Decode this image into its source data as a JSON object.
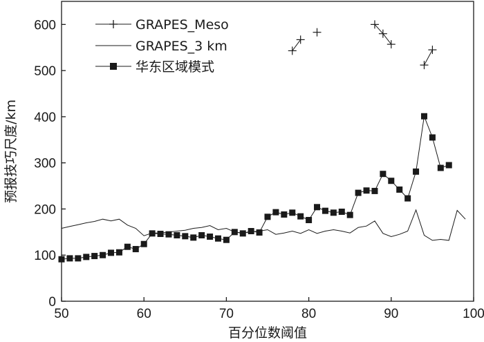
{
  "chart_data": {
    "type": "line",
    "title": "",
    "xlabel": "百分位数阈值",
    "ylabel": "预报技巧尺度/km",
    "xlim": [
      50,
      100
    ],
    "ylim": [
      0,
      650
    ],
    "x_ticks": [
      "50",
      "60",
      "70",
      "80",
      "90",
      "100"
    ],
    "y_ticks": [
      "0",
      "100",
      "200",
      "300",
      "400",
      "500",
      "600"
    ],
    "grid": false,
    "legend_position": "top-left",
    "series": [
      {
        "name": "GRAPES_Meso",
        "marker": "plus",
        "color": "#1a1a1a",
        "points": [
          [
            78,
            543
          ],
          [
            79,
            567
          ],
          [
            81,
            583
          ],
          [
            88,
            600
          ],
          [
            89,
            580
          ],
          [
            90,
            557
          ],
          [
            94,
            512
          ],
          [
            95,
            545
          ]
        ],
        "break_after_x": [
          79,
          81,
          90
        ]
      },
      {
        "name": "GRAPES_3 km",
        "marker": "none",
        "color": "#1a1a1a",
        "points": [
          [
            50,
            158
          ],
          [
            51,
            162
          ],
          [
            52,
            166
          ],
          [
            53,
            170
          ],
          [
            54,
            173
          ],
          [
            55,
            178
          ],
          [
            56,
            174
          ],
          [
            57,
            178
          ],
          [
            58,
            165
          ],
          [
            59,
            158
          ],
          [
            60,
            142
          ],
          [
            61,
            148
          ],
          [
            62,
            148
          ],
          [
            63,
            150
          ],
          [
            64,
            152
          ],
          [
            65,
            154
          ],
          [
            66,
            158
          ],
          [
            67,
            160
          ],
          [
            68,
            164
          ],
          [
            69,
            155
          ],
          [
            70,
            158
          ],
          [
            71,
            150
          ],
          [
            72,
            148
          ],
          [
            73,
            150
          ],
          [
            74,
            152
          ],
          [
            75,
            155
          ],
          [
            76,
            145
          ],
          [
            77,
            148
          ],
          [
            78,
            152
          ],
          [
            79,
            147
          ],
          [
            80,
            155
          ],
          [
            81,
            147
          ],
          [
            82,
            152
          ],
          [
            83,
            155
          ],
          [
            84,
            152
          ],
          [
            85,
            148
          ],
          [
            86,
            160
          ],
          [
            87,
            163
          ],
          [
            88,
            174
          ],
          [
            89,
            147
          ],
          [
            90,
            140
          ],
          [
            91,
            145
          ],
          [
            92,
            152
          ],
          [
            93,
            198
          ],
          [
            94,
            143
          ],
          [
            95,
            132
          ],
          [
            96,
            134
          ],
          [
            97,
            132
          ],
          [
            98,
            197
          ],
          [
            99,
            178
          ]
        ]
      },
      {
        "name": "华东区域模式",
        "marker": "square",
        "color": "#1a1a1a",
        "points": [
          [
            50,
            91
          ],
          [
            51,
            93
          ],
          [
            52,
            93
          ],
          [
            53,
            96
          ],
          [
            54,
            98
          ],
          [
            55,
            100
          ],
          [
            56,
            105
          ],
          [
            57,
            106
          ],
          [
            58,
            118
          ],
          [
            59,
            113
          ],
          [
            60,
            124
          ],
          [
            61,
            147
          ],
          [
            62,
            146
          ],
          [
            63,
            145
          ],
          [
            64,
            143
          ],
          [
            65,
            141
          ],
          [
            66,
            138
          ],
          [
            67,
            143
          ],
          [
            68,
            140
          ],
          [
            69,
            136
          ],
          [
            70,
            133
          ],
          [
            71,
            150
          ],
          [
            72,
            147
          ],
          [
            73,
            152
          ],
          [
            74,
            149
          ],
          [
            75,
            183
          ],
          [
            76,
            193
          ],
          [
            77,
            188
          ],
          [
            78,
            192
          ],
          [
            79,
            184
          ],
          [
            80,
            176
          ],
          [
            81,
            204
          ],
          [
            82,
            196
          ],
          [
            83,
            192
          ],
          [
            84,
            194
          ],
          [
            85,
            187
          ],
          [
            86,
            235
          ],
          [
            87,
            240
          ],
          [
            88,
            239
          ],
          [
            89,
            276
          ],
          [
            90,
            261
          ],
          [
            91,
            242
          ],
          [
            92,
            223
          ],
          [
            93,
            281
          ],
          [
            94,
            401
          ],
          [
            95,
            355
          ],
          [
            96,
            289
          ],
          [
            97,
            295
          ]
        ]
      }
    ]
  }
}
